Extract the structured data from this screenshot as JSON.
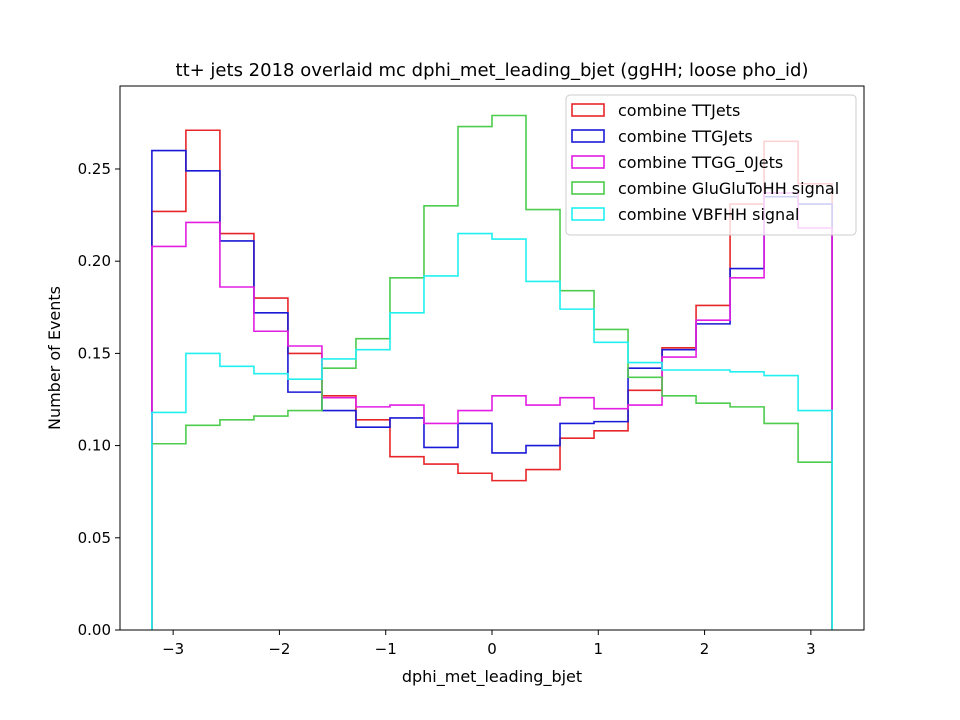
{
  "chart_data": {
    "type": "histogram",
    "title": "tt+ jets 2018 overlaid mc dphi_met_leading_bjet (ggHH; loose pho_id)",
    "xlabel": "dphi_met_leading_bjet",
    "ylabel": "Number of Events",
    "xlim": [
      -3.5,
      3.5
    ],
    "ylim": [
      0,
      0.295
    ],
    "grid": false,
    "legend_position": "top-right",
    "x_ticks": [
      -3,
      -2,
      -1,
      0,
      1,
      2,
      3
    ],
    "x_tick_labels": [
      "−3",
      "−2",
      "−1",
      "0",
      "1",
      "2",
      "3"
    ],
    "y_ticks": [
      0,
      0.05,
      0.1,
      0.15,
      0.2,
      0.25
    ],
    "y_tick_labels": [
      "0.00",
      "0.05",
      "0.10",
      "0.15",
      "0.20",
      "0.25"
    ],
    "bin_range": [
      -3.2,
      3.2
    ],
    "n_bins": 20,
    "series": [
      {
        "name": "combine TTJets",
        "color": "#e8262a",
        "values": [
          0.227,
          0.271,
          0.215,
          0.18,
          0.15,
          0.127,
          0.114,
          0.094,
          0.09,
          0.085,
          0.081,
          0.087,
          0.104,
          0.108,
          0.13,
          0.153,
          0.176,
          0.231,
          0.265,
          0.242
        ]
      },
      {
        "name": "combine TTGJets",
        "color": "#1a1ad6",
        "values": [
          0.26,
          0.249,
          0.211,
          0.172,
          0.129,
          0.119,
          0.11,
          0.115,
          0.099,
          0.112,
          0.096,
          0.1,
          0.112,
          0.113,
          0.142,
          0.152,
          0.166,
          0.196,
          0.235,
          0.231
        ]
      },
      {
        "name": "combine TTGG_0Jets",
        "color": "#e21ee2",
        "values": [
          0.208,
          0.221,
          0.186,
          0.162,
          0.154,
          0.126,
          0.121,
          0.122,
          0.112,
          0.119,
          0.127,
          0.122,
          0.126,
          0.12,
          0.122,
          0.148,
          0.168,
          0.191,
          0.237,
          0.218
        ]
      },
      {
        "name": "combine GluGluToHH signal",
        "color": "#4dcc4d",
        "values": [
          0.101,
          0.111,
          0.114,
          0.116,
          0.119,
          0.142,
          0.158,
          0.191,
          0.23,
          0.273,
          0.279,
          0.228,
          0.184,
          0.163,
          0.137,
          0.127,
          0.123,
          0.121,
          0.112,
          0.091
        ]
      },
      {
        "name": "combine VBFHH signal",
        "color": "#22f0f0",
        "values": [
          0.118,
          0.15,
          0.143,
          0.139,
          0.136,
          0.147,
          0.152,
          0.172,
          0.192,
          0.215,
          0.212,
          0.189,
          0.174,
          0.156,
          0.145,
          0.141,
          0.141,
          0.14,
          0.138,
          0.119
        ]
      }
    ]
  }
}
